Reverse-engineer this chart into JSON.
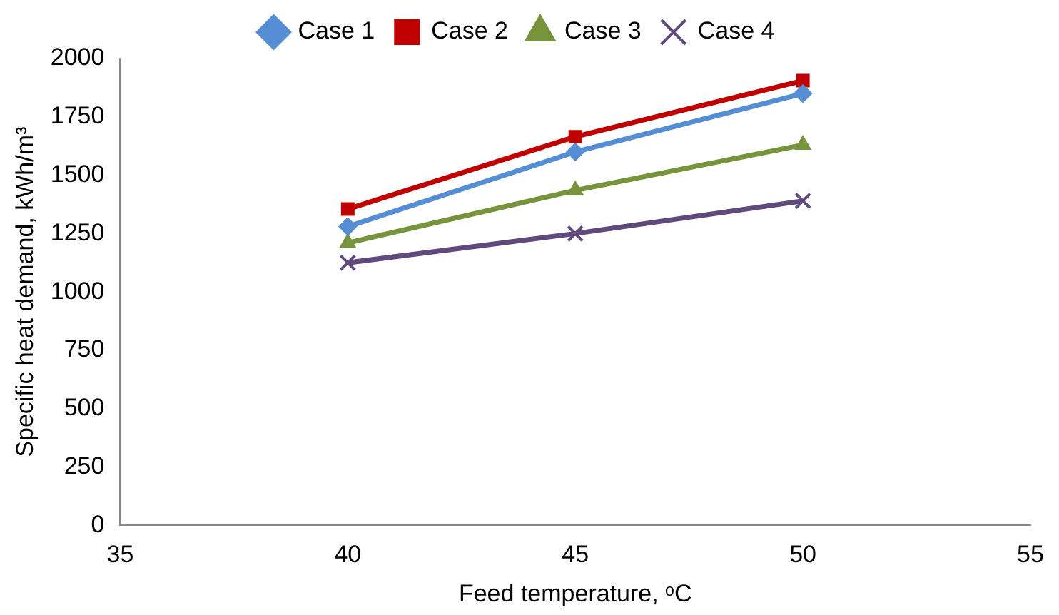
{
  "chart_data": {
    "type": "line",
    "xlabel": "Feed temperature, ᵒC",
    "ylabel": "Specific heat demand, kWh/m³",
    "x": [
      40,
      45,
      50
    ],
    "xlim": [
      35,
      55
    ],
    "xticks": [
      35,
      40,
      45,
      50,
      55
    ],
    "ylim": [
      0,
      2000
    ],
    "yticks": [
      0,
      250,
      500,
      750,
      1000,
      1250,
      1500,
      1750,
      2000
    ],
    "grid": false,
    "legend": "top",
    "line_style": "solid",
    "series": [
      {
        "name": "Case 1",
        "color": "#558ed5",
        "marker": "diamond",
        "values": [
          1280,
          1600,
          1850
        ]
      },
      {
        "name": "Case 2",
        "color": "#c00000",
        "marker": "square",
        "values": [
          1355,
          1665,
          1905
        ]
      },
      {
        "name": "Case 3",
        "color": "#77933c",
        "marker": "triangle",
        "values": [
          1210,
          1435,
          1630
        ]
      },
      {
        "name": "Case 4",
        "color": "#604a7b",
        "marker": "cross",
        "values": [
          1125,
          1250,
          1390
        ]
      }
    ]
  }
}
